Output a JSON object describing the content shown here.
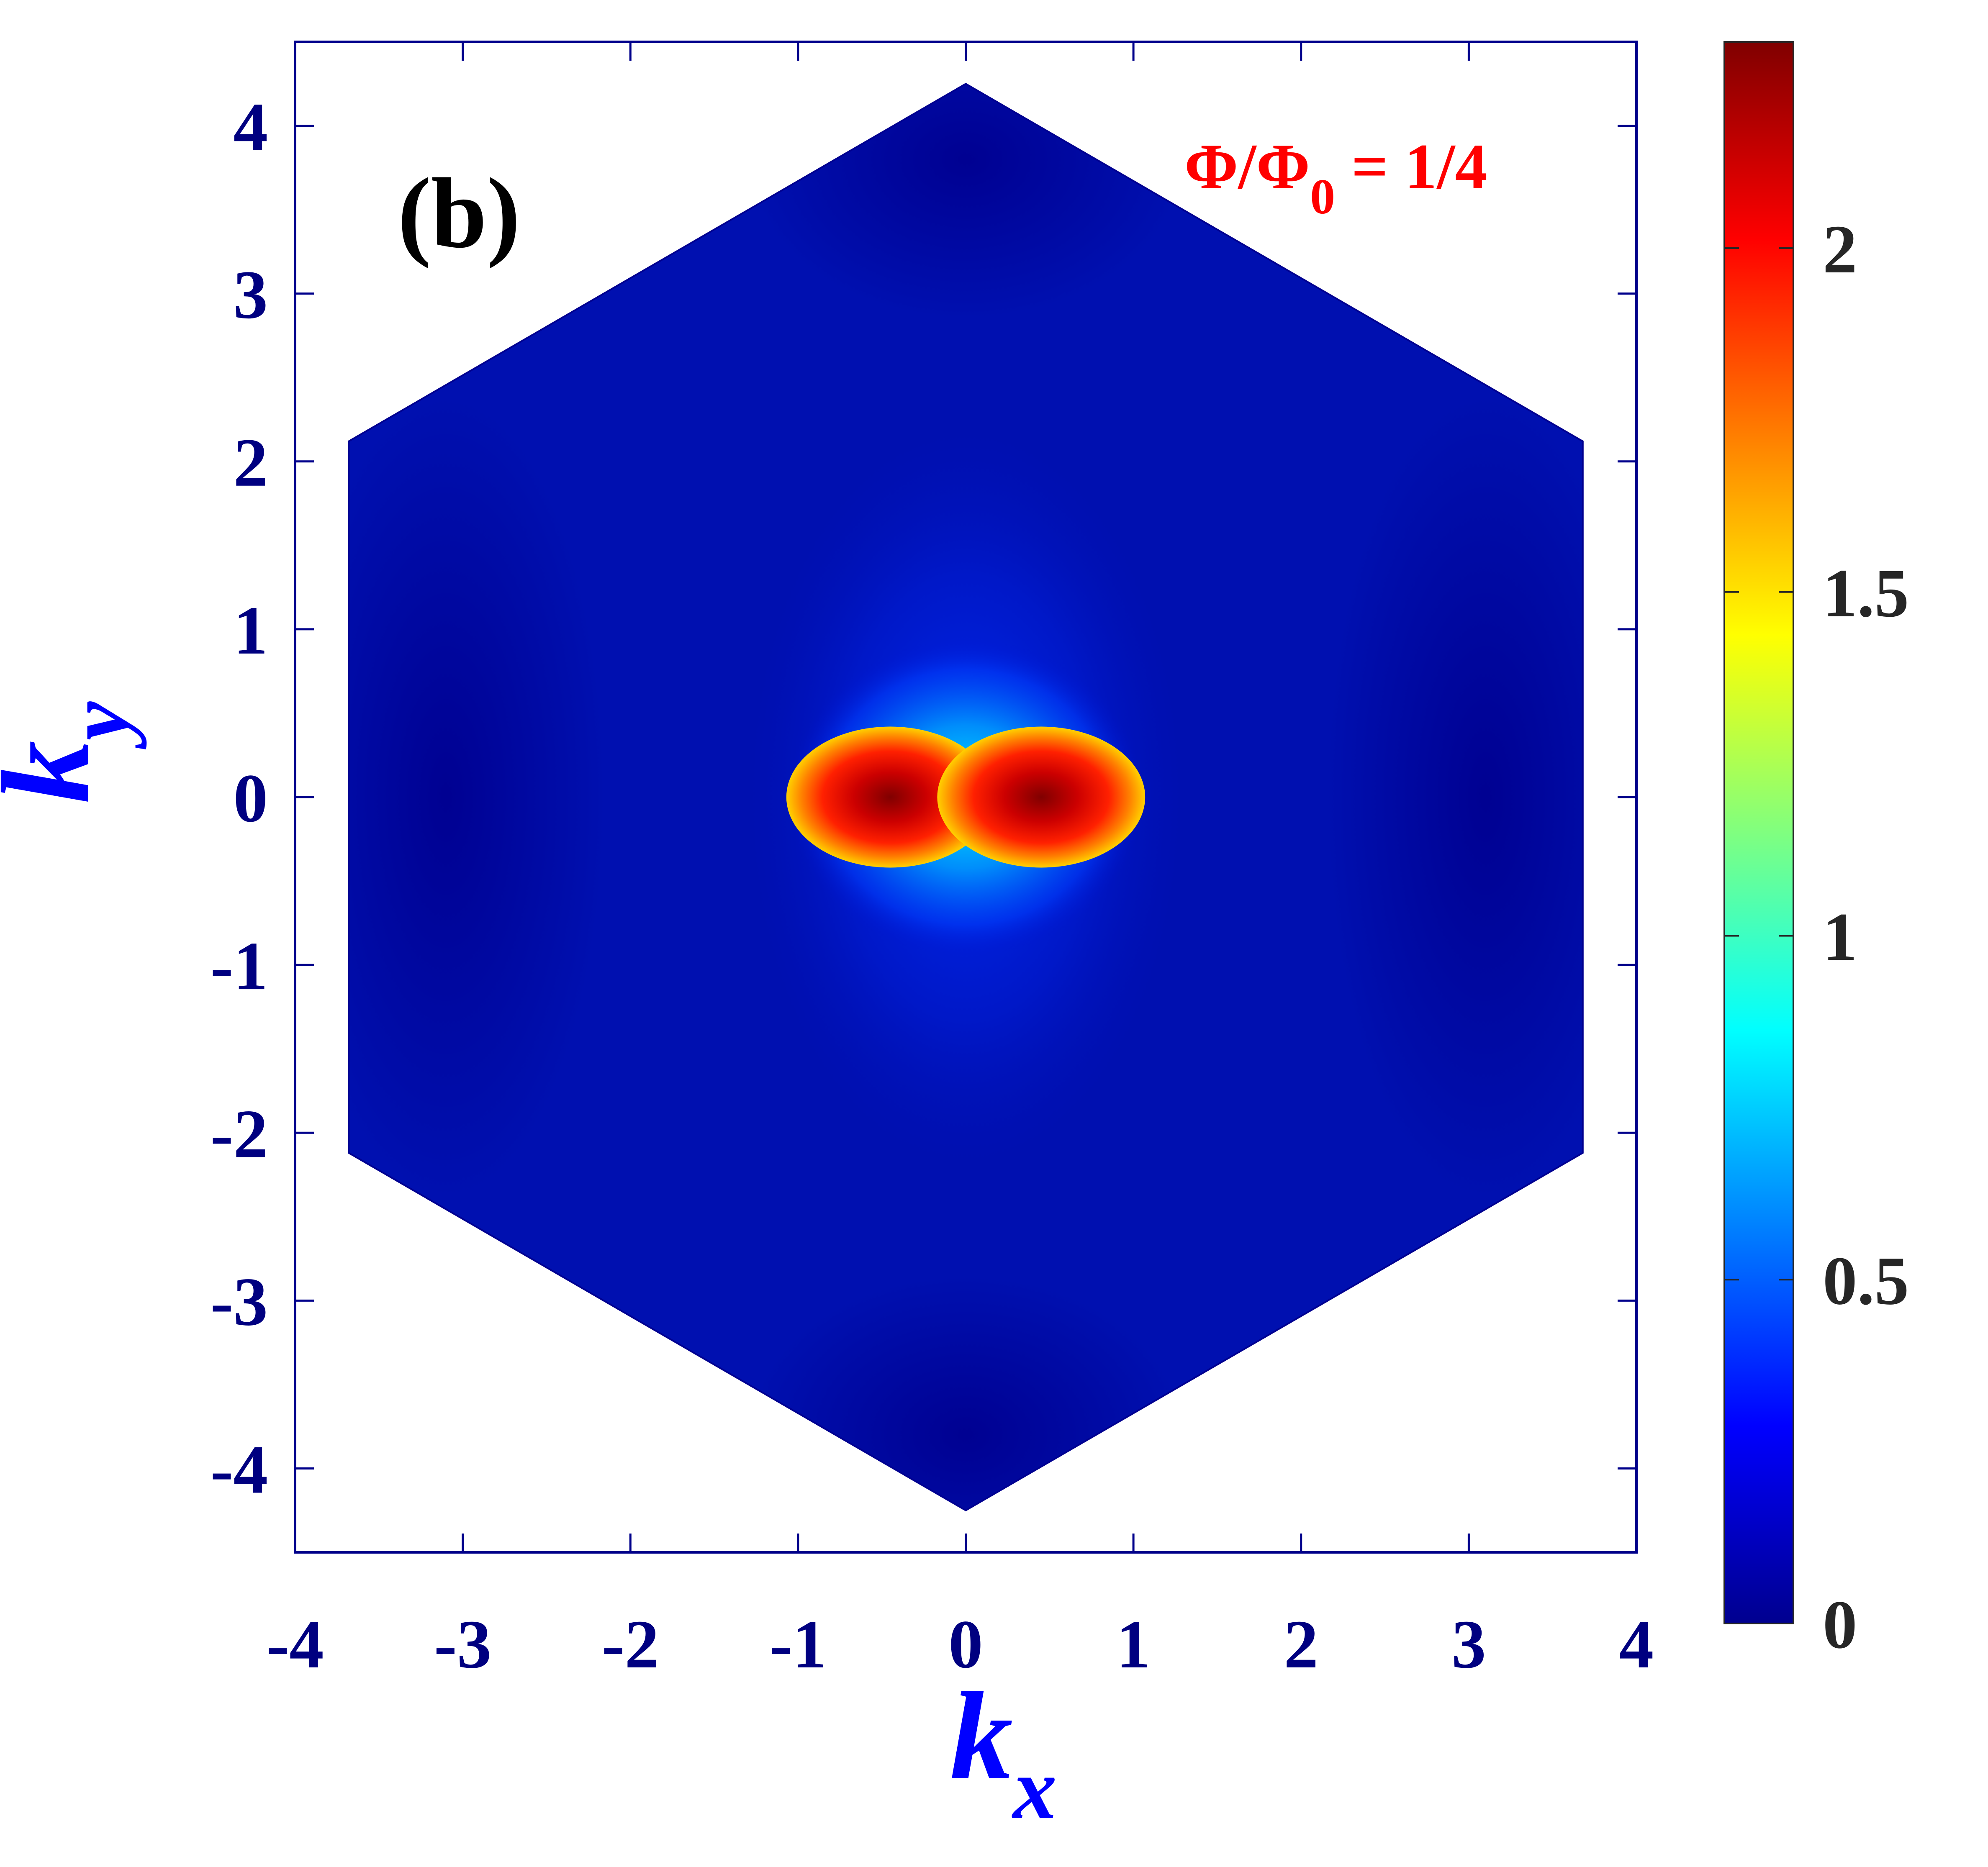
{
  "chart_data": {
    "type": "heatmap",
    "panel_label": "(b)",
    "annotation": {
      "parts": [
        "Φ/Φ",
        "0",
        " = 1/4"
      ],
      "color": "#ff0000"
    },
    "xlabel": {
      "main": "k",
      "sub": "x"
    },
    "ylabel": {
      "main": "k",
      "sub": "y"
    },
    "xlim": [
      -4,
      4
    ],
    "ylim": [
      -4.5,
      4.5
    ],
    "xticks": [
      -4,
      -3,
      -2,
      -1,
      0,
      1,
      2,
      3,
      4
    ],
    "xtick_labels": [
      "-4",
      "-3",
      "-2",
      "-1",
      "0",
      "1",
      "2",
      "3",
      "4"
    ],
    "yticks": [
      -4,
      -3,
      -2,
      -1,
      0,
      1,
      2,
      3,
      4
    ],
    "ytick_labels": [
      "-4",
      "-3",
      "-2",
      "-1",
      "0",
      "1",
      "2",
      "3",
      "4"
    ],
    "grid": false,
    "domain": {
      "shape": "hexagon",
      "vertices": [
        [
          0,
          4.25
        ],
        [
          3.68,
          2.12
        ],
        [
          3.68,
          -2.12
        ],
        [
          0,
          -4.25
        ],
        [
          -3.68,
          -2.12
        ],
        [
          -3.68,
          2.12
        ]
      ]
    },
    "peaks": [
      {
        "kx": -0.45,
        "ky": 0,
        "value": 2.3
      },
      {
        "kx": 0.45,
        "ky": 0,
        "value": 2.3
      }
    ],
    "colorbar": {
      "range": [
        0,
        2.3
      ],
      "ticks": [
        0,
        0.5,
        1,
        1.5,
        2
      ],
      "tick_labels": [
        "0",
        "0.5",
        "1",
        "1.5",
        "2"
      ],
      "colormap": "jet"
    },
    "colors": {
      "axis": "#00008b",
      "axis_label": "#0000ff",
      "tick_label": "#000080",
      "colorbar_tick_label": "#262626",
      "background_field": "#0010b0"
    }
  }
}
